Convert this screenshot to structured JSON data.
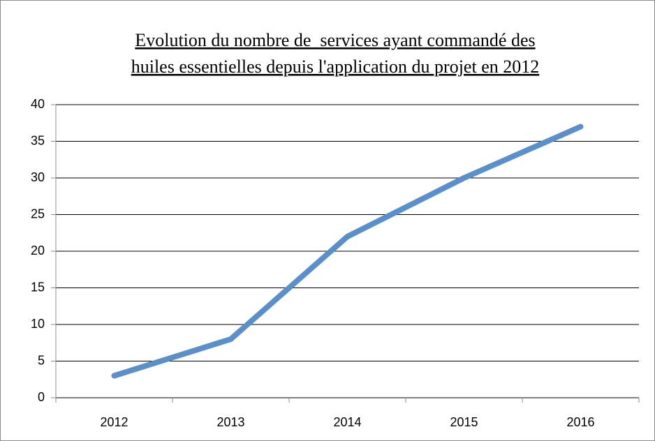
{
  "chart_data": {
    "type": "line",
    "title": [
      "Evolution du nombre de  services ayant commandé des",
      "huiles essentielles depuis l'application du projet en 2012"
    ],
    "categories": [
      "2012",
      "2013",
      "2014",
      "2015",
      "2016"
    ],
    "values": [
      3,
      8,
      22,
      30,
      37
    ],
    "color": "#5b8fc9",
    "ylim": [
      0,
      40
    ],
    "yticks": [
      0,
      5,
      10,
      15,
      20,
      25,
      30,
      35,
      40
    ],
    "grid": true
  }
}
